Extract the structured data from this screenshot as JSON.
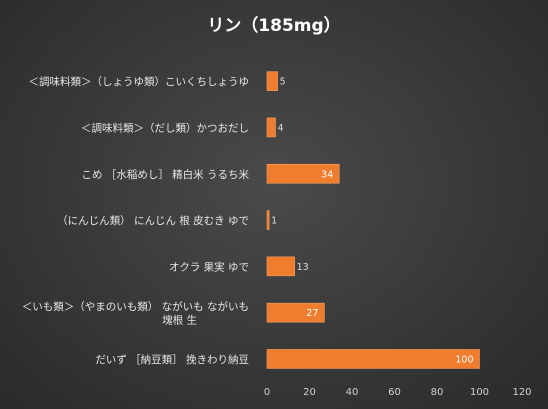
{
  "colors": {
    "bar": "#f07c2e",
    "bar_highlight": "#f7a060",
    "grid": "#505050",
    "label_on_bar": "#ffffff",
    "label_off_bar": "#d9d9d9"
  },
  "chart_data": {
    "type": "bar",
    "orientation": "horizontal",
    "title": "リン（185mg）",
    "categories": [
      "＜調味料類＞（しょうゆ類）こいくちしょうゆ",
      "＜調味料類＞（だし類）かつおだし",
      "こめ［水稲めし］ 精白米 うるち米",
      "（にんじん類） にんじん 根 皮むき ゆで",
      "オクラ 果実 ゆで",
      "＜いも類＞（やまのいも類） ながいも ながいも 塊根 生",
      "だいず ［納豆類］ 挽きわり納豆"
    ],
    "category_lines": [
      [
        "＜調味料類＞（しょうゆ類）こいくちしょうゆ"
      ],
      [
        "＜調味料類＞（だし類）かつおだし"
      ],
      [
        "こめ ［水稲めし］ 精白米 うるち米"
      ],
      [
        "（にんじん類） にんじん 根 皮むき ゆで"
      ],
      [
        "オクラ 果実 ゆで"
      ],
      [
        "＜いも類＞（やまのいも類） ながいも ながいも",
        "塊根 生"
      ],
      [
        "だいず ［納豆類］ 挽きわり納豆"
      ]
    ],
    "values": [
      5,
      4,
      34,
      1,
      13,
      27,
      100
    ],
    "xlim": [
      0,
      120
    ],
    "xticks": [
      0,
      20,
      40,
      60,
      80,
      100,
      120
    ],
    "xlabel": "",
    "ylabel": "",
    "grid": false,
    "legend": "none"
  }
}
